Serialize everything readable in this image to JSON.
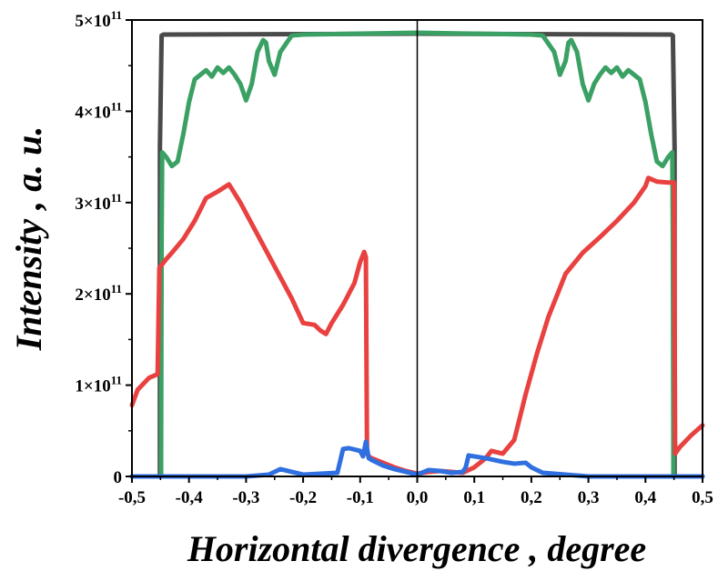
{
  "chart_data": {
    "type": "line",
    "title": "",
    "xlabel": "Horizontal divergence , degree",
    "ylabel": "Intensity , a. u.",
    "xlim": [
      -0.5,
      0.5
    ],
    "ylim": [
      0,
      500000000000.0
    ],
    "grid": false,
    "x_ticks": [
      {
        "value": -0.5,
        "label": "-0,5"
      },
      {
        "value": -0.4,
        "label": "-0,4"
      },
      {
        "value": -0.3,
        "label": "-0,3"
      },
      {
        "value": -0.2,
        "label": "-0,2"
      },
      {
        "value": -0.1,
        "label": "-0,1"
      },
      {
        "value": 0.0,
        "label": "0,0"
      },
      {
        "value": 0.1,
        "label": "0,1"
      },
      {
        "value": 0.2,
        "label": "0,2"
      },
      {
        "value": 0.3,
        "label": "0,3"
      },
      {
        "value": 0.4,
        "label": "0,4"
      },
      {
        "value": 0.5,
        "label": "0,5"
      }
    ],
    "y_ticks": [
      {
        "value": 0,
        "base": "0",
        "exp": ""
      },
      {
        "value": 100000000000.0,
        "base": "1×10",
        "exp": "11"
      },
      {
        "value": 200000000000.0,
        "base": "2×10",
        "exp": "11"
      },
      {
        "value": 300000000000.0,
        "base": "3×10",
        "exp": "11"
      },
      {
        "value": 400000000000.0,
        "base": "4×10",
        "exp": "11"
      },
      {
        "value": 500000000000.0,
        "base": "5×10",
        "exp": "11"
      }
    ],
    "series": [
      {
        "color": "#4a4a4a",
        "x": [
          -0.5,
          -0.451,
          -0.451,
          -0.448,
          -0.445,
          0.0,
          0.445,
          0.448,
          0.451,
          0.451,
          0.5
        ],
        "y": [
          0,
          0,
          360000000000.0,
          483000000000.0,
          484000000000.0,
          485000000000.0,
          484000000000.0,
          483000000000.0,
          360000000000.0,
          0,
          0
        ]
      },
      {
        "color": "#3aa064",
        "x": [
          -0.5,
          -0.449,
          -0.448,
          -0.447,
          -0.44,
          -0.43,
          -0.42,
          -0.41,
          -0.4,
          -0.39,
          -0.37,
          -0.36,
          -0.35,
          -0.34,
          -0.33,
          -0.32,
          -0.31,
          -0.3,
          -0.29,
          -0.28,
          -0.27,
          -0.265,
          -0.26,
          -0.25,
          -0.24,
          -0.22,
          -0.2,
          -0.1,
          0.0,
          0.1,
          0.2,
          0.22,
          0.24,
          0.25,
          0.26,
          0.265,
          0.27,
          0.28,
          0.29,
          0.3,
          0.31,
          0.32,
          0.33,
          0.34,
          0.35,
          0.36,
          0.37,
          0.39,
          0.4,
          0.41,
          0.42,
          0.43,
          0.44,
          0.447,
          0.448,
          0.449,
          0.5
        ],
        "y": [
          0,
          0,
          265000000000.0,
          355000000000.0,
          350000000000.0,
          340000000000.0,
          345000000000.0,
          375000000000.0,
          410000000000.0,
          435000000000.0,
          445000000000.0,
          438000000000.0,
          448000000000.0,
          442000000000.0,
          448000000000.0,
          440000000000.0,
          430000000000.0,
          412000000000.0,
          430000000000.0,
          465000000000.0,
          478000000000.0,
          475000000000.0,
          455000000000.0,
          440000000000.0,
          465000000000.0,
          483000000000.0,
          484000000000.0,
          485000000000.0,
          486000000000.0,
          485000000000.0,
          484000000000.0,
          483000000000.0,
          465000000000.0,
          440000000000.0,
          455000000000.0,
          475000000000.0,
          478000000000.0,
          465000000000.0,
          430000000000.0,
          412000000000.0,
          430000000000.0,
          440000000000.0,
          448000000000.0,
          442000000000.0,
          448000000000.0,
          438000000000.0,
          445000000000.0,
          435000000000.0,
          410000000000.0,
          375000000000.0,
          345000000000.0,
          340000000000.0,
          350000000000.0,
          355000000000.0,
          265000000000.0,
          0,
          0
        ]
      },
      {
        "color": "#e8413f",
        "x": [
          -0.5,
          -0.49,
          -0.47,
          -0.455,
          -0.452,
          -0.45,
          -0.44,
          -0.43,
          -0.41,
          -0.39,
          -0.37,
          -0.35,
          -0.33,
          -0.31,
          -0.28,
          -0.25,
          -0.22,
          -0.2,
          -0.18,
          -0.17,
          -0.16,
          -0.15,
          -0.13,
          -0.11,
          -0.1,
          -0.093,
          -0.09,
          -0.088,
          -0.085,
          -0.08,
          -0.06,
          -0.04,
          -0.02,
          0.0,
          0.02,
          0.04,
          0.06,
          0.08,
          0.1,
          0.12,
          0.13,
          0.15,
          0.17,
          0.19,
          0.21,
          0.23,
          0.26,
          0.29,
          0.32,
          0.35,
          0.38,
          0.4,
          0.405,
          0.42,
          0.44,
          0.45,
          0.452,
          0.46,
          0.48,
          0.5
        ],
        "y": [
          78000000000.0,
          95000000000.0,
          108000000000.0,
          112000000000.0,
          228000000000.0,
          230000000000.0,
          238000000000.0,
          245000000000.0,
          260000000000.0,
          280000000000.0,
          305000000000.0,
          312000000000.0,
          320000000000.0,
          300000000000.0,
          265000000000.0,
          230000000000.0,
          195000000000.0,
          168000000000.0,
          166000000000.0,
          160000000000.0,
          156000000000.0,
          168000000000.0,
          188000000000.0,
          212000000000.0,
          235000000000.0,
          246000000000.0,
          240000000000.0,
          25000000000.0,
          22000000000.0,
          20000000000.0,
          15000000000.0,
          10000000000.0,
          6000000000.0,
          3000000000.0,
          5000000000.0,
          6000000000.0,
          5000000000.0,
          4000000000.0,
          10000000000.0,
          20000000000.0,
          28000000000.0,
          25000000000.0,
          40000000000.0,
          90000000000.0,
          135000000000.0,
          175000000000.0,
          222000000000.0,
          245000000000.0,
          262000000000.0,
          280000000000.0,
          300000000000.0,
          318000000000.0,
          327000000000.0,
          323000000000.0,
          322000000000.0,
          322000000000.0,
          25000000000.0,
          32000000000.0,
          45000000000.0,
          56000000000.0
        ]
      },
      {
        "color": "#2f6fe0",
        "x": [
          -0.5,
          -0.3,
          -0.26,
          -0.24,
          -0.22,
          -0.2,
          -0.17,
          -0.14,
          -0.13,
          -0.12,
          -0.1,
          -0.095,
          -0.09,
          -0.085,
          -0.08,
          -0.06,
          -0.04,
          -0.02,
          0.0,
          0.02,
          0.04,
          0.06,
          0.08,
          0.085,
          0.09,
          0.1,
          0.12,
          0.15,
          0.17,
          0.19,
          0.2,
          0.22,
          0.26,
          0.3,
          0.5
        ],
        "y": [
          0,
          0,
          2000000000.0,
          8000000000.0,
          5000000000.0,
          2000000000.0,
          3000000000.0,
          4000000000.0,
          30000000000.0,
          31000000000.0,
          28000000000.0,
          22000000000.0,
          38000000000.0,
          20000000000.0,
          18000000000.0,
          12000000000.0,
          8000000000.0,
          5000000000.0,
          2000000000.0,
          7000000000.0,
          6000000000.0,
          4000000000.0,
          5000000000.0,
          10000000000.0,
          23000000000.0,
          22000000000.0,
          20000000000.0,
          16000000000.0,
          14000000000.0,
          15000000000.0,
          10000000000.0,
          4000000000.0,
          2000000000.0,
          0,
          0
        ]
      }
    ]
  }
}
